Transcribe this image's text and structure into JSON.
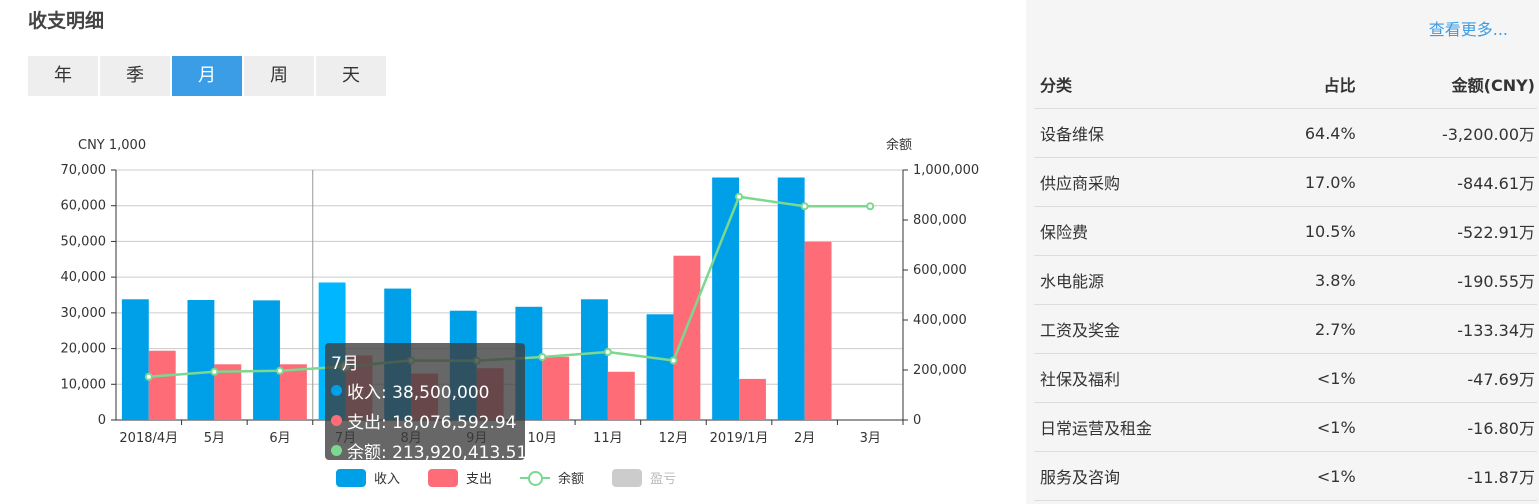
{
  "title": "收支明细",
  "tabs": [
    {
      "label": "年",
      "active": false
    },
    {
      "label": "季",
      "active": false
    },
    {
      "label": "月",
      "active": true
    },
    {
      "label": "周",
      "active": false
    },
    {
      "label": "天",
      "active": false
    }
  ],
  "chart_data": {
    "type": "bar",
    "categories": [
      "2018/4月",
      "5月",
      "6月",
      "7月",
      "8月",
      "9月",
      "10月",
      "11月",
      "12月",
      "2019/1月",
      "2月",
      "3月"
    ],
    "series": [
      {
        "name": "收入",
        "type": "bar",
        "axis": "left",
        "color": "#00a0e9",
        "values": [
          33800,
          33600,
          33500,
          38500,
          36800,
          30600,
          31700,
          33800,
          29600,
          67900,
          67900,
          null
        ]
      },
      {
        "name": "支出",
        "type": "bar",
        "axis": "left",
        "color": "#fe6c77",
        "values": [
          19400,
          15600,
          15600,
          18076.59,
          13000,
          14500,
          17700,
          13500,
          46000,
          11500,
          49900,
          null
        ]
      },
      {
        "name": "余额",
        "type": "line",
        "axis": "right",
        "color": "#7bd88f",
        "values": [
          173000,
          193000,
          197000,
          213920,
          238000,
          237000,
          252000,
          272000,
          238000,
          893000,
          855000,
          855000
        ]
      }
    ],
    "legend_extra": "盈亏",
    "left_axis": {
      "label": "CNY 1,000",
      "min": 0,
      "max": 70000,
      "ticks": [
        "0",
        "10,000",
        "20,000",
        "30,000",
        "40,000",
        "50,000",
        "60,000",
        "70,000"
      ]
    },
    "right_axis": {
      "label": "余额",
      "min": 0,
      "max": 1000000,
      "ticks": [
        "0",
        "200,000",
        "400,000",
        "600,000",
        "800,000",
        "1,000,000"
      ]
    },
    "highlight_index": 3,
    "legend_position": "bottom",
    "grid": true
  },
  "tooltip": {
    "title": "7月",
    "rows": [
      {
        "text": "收入: 38,500,000",
        "color": "#00a0e9"
      },
      {
        "text": "支出: 18,076,592.94",
        "color": "#fe6c77"
      },
      {
        "text": "余额: 213,920,413.51",
        "color": "#7bd88f"
      }
    ]
  },
  "sidebar": {
    "more_label": "查看更多...",
    "headers": [
      "分类",
      "占比",
      "金额(CNY)"
    ],
    "rows": [
      [
        "设备维保",
        "64.4%",
        "-3,200.00万"
      ],
      [
        "供应商采购",
        "17.0%",
        "-844.61万"
      ],
      [
        "保险费",
        "10.5%",
        "-522.91万"
      ],
      [
        "水电能源",
        "3.8%",
        "-190.55万"
      ],
      [
        "工资及奖金",
        "2.7%",
        "-133.34万"
      ],
      [
        "社保及福利",
        "<1%",
        "-47.69万"
      ],
      [
        "日常运营及租金",
        "<1%",
        "-16.80万"
      ],
      [
        "服务及咨询",
        "<1%",
        "-11.87万"
      ]
    ]
  }
}
